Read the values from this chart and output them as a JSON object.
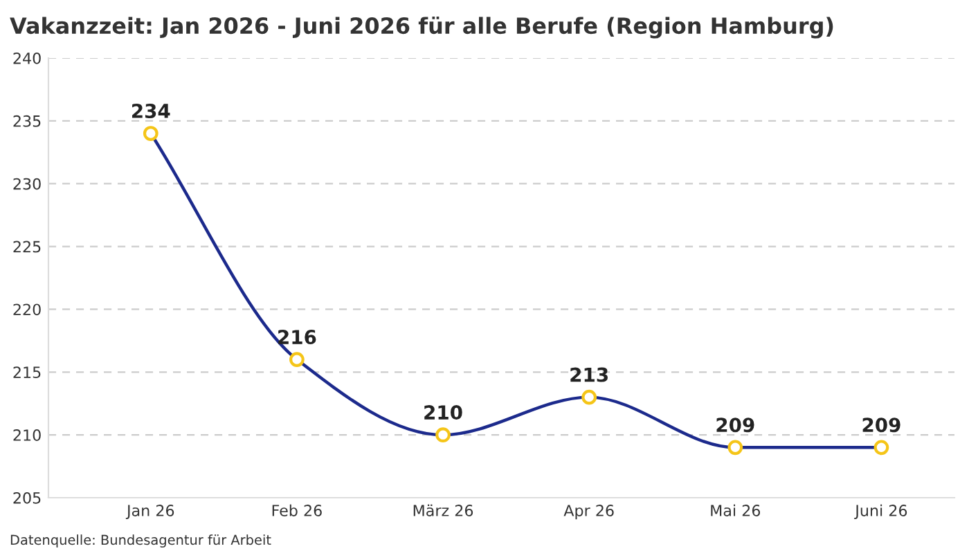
{
  "chart_data": {
    "type": "line",
    "title": "Vakanzzeit: Jan 2026 - Juni 2026 für alle Berufe (Region Hamburg)",
    "categories": [
      "Jan 26",
      "Feb 26",
      "März 26",
      "Apr 26",
      "Mai 26",
      "Juni 26"
    ],
    "series": [
      {
        "color": "#1c2a8c",
        "values": [
          234,
          216,
          210,
          213,
          209,
          209
        ]
      }
    ],
    "marker": "circle",
    "data_labels": true,
    "ylim": [
      205,
      240
    ],
    "yticks": [
      205,
      210,
      215,
      220,
      225,
      230,
      235,
      240
    ],
    "grid": "y",
    "annotations": [
      "Datenquelle: Bundesagentur für Arbeit"
    ]
  }
}
